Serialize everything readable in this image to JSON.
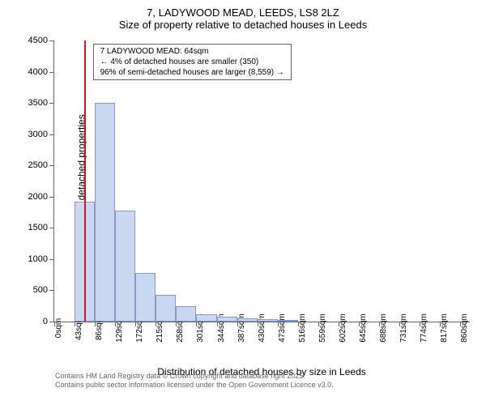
{
  "chart": {
    "type": "histogram",
    "title_line1": "7, LADYWOOD MEAD, LEEDS, LS8 2LZ",
    "title_line2": "Size of property relative to detached houses in Leeds",
    "y_axis_label": "Number of detached properties",
    "x_axis_label": "Distribution of detached houses by size in Leeds",
    "background_color": "#ffffff",
    "axis_color": "#666666",
    "bar_fill_color": "#cad7f0",
    "bar_border_color": "#8a98c8",
    "reference_line_color": "#c02020",
    "reference_line_x": 64,
    "y_ticks": [
      0,
      500,
      1000,
      1500,
      2000,
      2500,
      3000,
      3500,
      4000,
      4500
    ],
    "y_max": 4500,
    "x_ticks": [
      0,
      43,
      86,
      129,
      172,
      215,
      258,
      301,
      344,
      387,
      430,
      473,
      516,
      559,
      602,
      645,
      688,
      731,
      774,
      817,
      860
    ],
    "x_tick_suffix": "sqm",
    "x_max": 880,
    "bins": [
      {
        "x_start": 43,
        "x_end": 86,
        "count": 1920
      },
      {
        "x_start": 86,
        "x_end": 129,
        "count": 3500
      },
      {
        "x_start": 129,
        "x_end": 172,
        "count": 1780
      },
      {
        "x_start": 172,
        "x_end": 215,
        "count": 780
      },
      {
        "x_start": 215,
        "x_end": 258,
        "count": 430
      },
      {
        "x_start": 258,
        "x_end": 301,
        "count": 250
      },
      {
        "x_start": 301,
        "x_end": 344,
        "count": 120
      },
      {
        "x_start": 344,
        "x_end": 387,
        "count": 80
      },
      {
        "x_start": 387,
        "x_end": 430,
        "count": 50
      },
      {
        "x_start": 430,
        "x_end": 473,
        "count": 35
      },
      {
        "x_start": 473,
        "x_end": 516,
        "count": 20
      }
    ],
    "annotation": {
      "line1": "7 LADYWOOD MEAD: 64sqm",
      "line2": "← 4% of detached houses are smaller (350)",
      "line3": "96% of semi-detached houses are larger (8,559) →"
    },
    "footer_line1": "Contains HM Land Registry data © Crown copyright and database right 2025.",
    "footer_line2": "Contains public sector information licensed under the Open Government Licence v3.0."
  }
}
